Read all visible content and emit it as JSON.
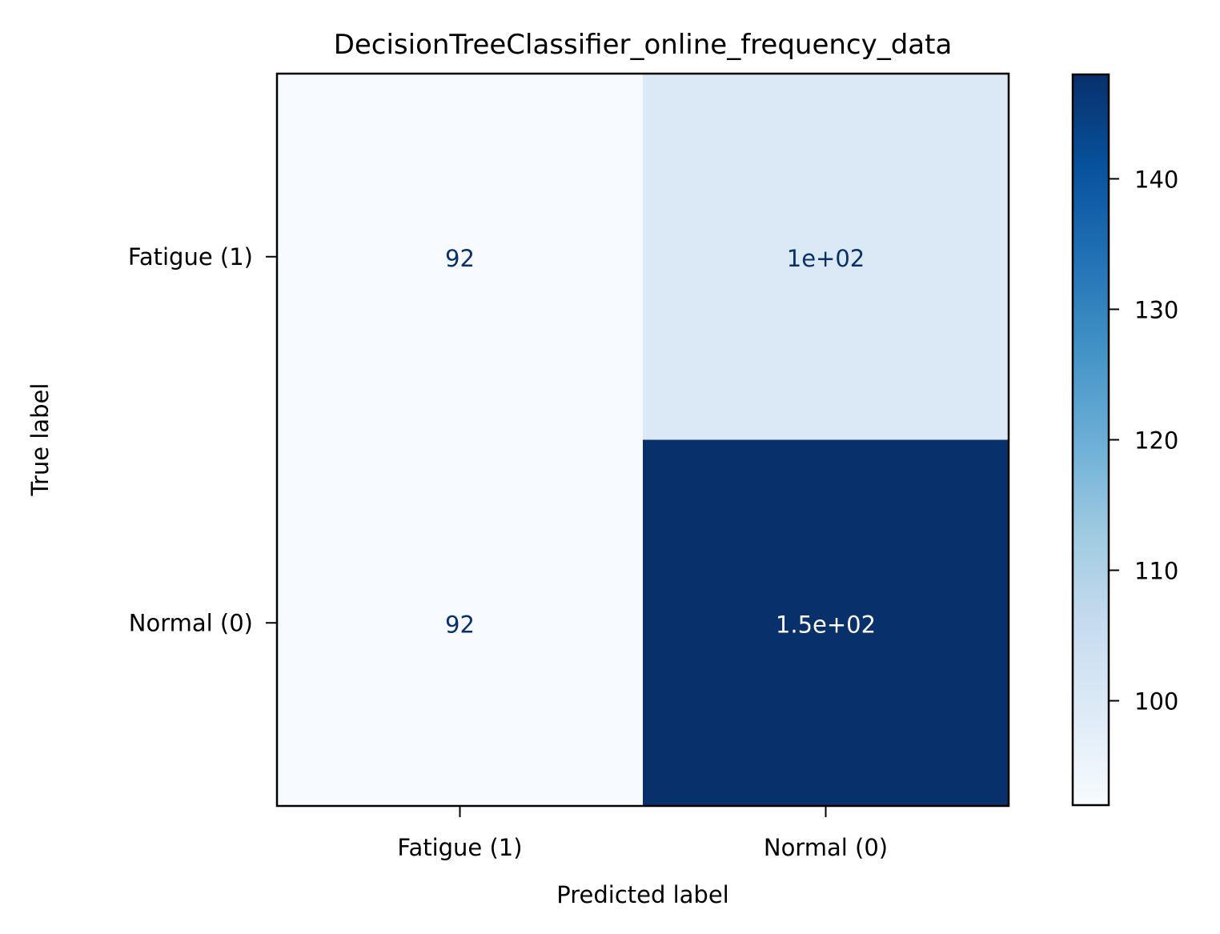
{
  "chart_data": {
    "type": "heatmap",
    "title": "DecisionTreeClassifier_online_frequency_data",
    "xlabel": "Predicted label",
    "ylabel": "True label",
    "x_categories": [
      "Fatigue (1)",
      "Normal (0)"
    ],
    "y_categories": [
      "Fatigue (1)",
      "Normal (0)"
    ],
    "values": [
      [
        92,
        100
      ],
      [
        92,
        148
      ]
    ],
    "cell_labels": [
      [
        "92",
        "1e+02"
      ],
      [
        "92",
        "1.5e+02"
      ]
    ],
    "colormap": "Blues",
    "color_range": [
      92,
      148
    ],
    "colorbar_ticks": [
      100,
      110,
      120,
      130,
      140
    ],
    "colorbar_tick_labels": [
      "100",
      "110",
      "120",
      "130",
      "140"
    ],
    "colors": {
      "low": "#f7fbff",
      "high": "#08306b",
      "text_on_light": "#08306b",
      "text_on_dark": "#ffffff"
    }
  }
}
